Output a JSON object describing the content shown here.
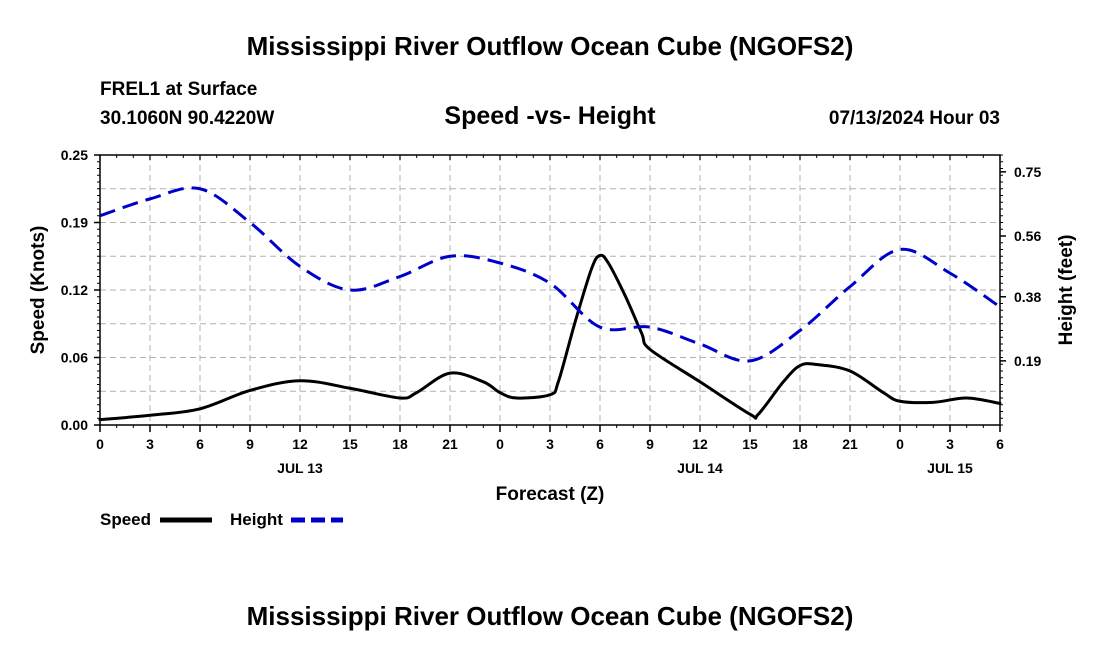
{
  "header": {
    "title": "Mississippi River Outflow Ocean Cube (NGOFS2)",
    "station": "FREL1 at Surface",
    "location": "30.1060N  90.4220W",
    "subtitle": "Speed -vs- Height",
    "datetime": "07/13/2024 Hour 03"
  },
  "footer": {
    "title": "Mississippi River Outflow Ocean Cube (NGOFS2)"
  },
  "colors": {
    "speed": "#000000",
    "height": "#0000cc",
    "grid": "#b0b0b0"
  },
  "chart_data": {
    "type": "line",
    "title": "Speed -vs- Height",
    "xlabel": "Forecast (Z)",
    "ylabel": "Speed (Knots)",
    "y2label": "Height (feet)",
    "xlim": [
      0,
      54
    ],
    "ylim": [
      0,
      0.25
    ],
    "y2lim": [
      0.0,
      0.8
    ],
    "x_ticks": [
      {
        "x": 0,
        "label": "0"
      },
      {
        "x": 3,
        "label": "3"
      },
      {
        "x": 6,
        "label": "6"
      },
      {
        "x": 9,
        "label": "9"
      },
      {
        "x": 12,
        "label": "12"
      },
      {
        "x": 15,
        "label": "15"
      },
      {
        "x": 18,
        "label": "18"
      },
      {
        "x": 21,
        "label": "21"
      },
      {
        "x": 24,
        "label": "0"
      },
      {
        "x": 27,
        "label": "3"
      },
      {
        "x": 30,
        "label": "6"
      },
      {
        "x": 33,
        "label": "9"
      },
      {
        "x": 36,
        "label": "12"
      },
      {
        "x": 39,
        "label": "15"
      },
      {
        "x": 42,
        "label": "18"
      },
      {
        "x": 45,
        "label": "21"
      },
      {
        "x": 48,
        "label": "0"
      },
      {
        "x": 51,
        "label": "3"
      },
      {
        "x": 54,
        "label": "6"
      }
    ],
    "date_labels": [
      {
        "x": 12,
        "label": "JUL 13"
      },
      {
        "x": 36,
        "label": "JUL 14"
      },
      {
        "x": 51,
        "label": "JUL 15"
      }
    ],
    "y_ticks": [
      {
        "value": 0.0,
        "label": "0.00"
      },
      {
        "value": 0.0625,
        "label": "0.06"
      },
      {
        "value": 0.125,
        "label": "0.12"
      },
      {
        "value": 0.1875,
        "label": "0.19"
      },
      {
        "value": 0.25,
        "label": "0.25"
      }
    ],
    "y2_ticks": [
      {
        "value": 0.19,
        "label": "0.19"
      },
      {
        "value": 0.38,
        "label": "0.38"
      },
      {
        "value": 0.56,
        "label": "0.56"
      },
      {
        "value": 0.75,
        "label": "0.75"
      }
    ],
    "series": [
      {
        "name": "Speed",
        "axis": "left",
        "style": "solid",
        "x": [
          0,
          3,
          6,
          9,
          12,
          15,
          18,
          19,
          21,
          23,
          24,
          25,
          27,
          27.5,
          28.5,
          29.5,
          30,
          30.5,
          31.5,
          32.5,
          33,
          36,
          39,
          39.5,
          41,
          42,
          43,
          45,
          47,
          48,
          50,
          52,
          54
        ],
        "values": [
          0.005,
          0.009,
          0.015,
          0.032,
          0.041,
          0.034,
          0.025,
          0.03,
          0.048,
          0.04,
          0.03,
          0.025,
          0.028,
          0.04,
          0.095,
          0.145,
          0.157,
          0.15,
          0.12,
          0.085,
          0.07,
          0.04,
          0.01,
          0.01,
          0.04,
          0.055,
          0.056,
          0.05,
          0.03,
          0.022,
          0.021,
          0.025,
          0.02
        ]
      },
      {
        "name": "Height",
        "axis": "right",
        "style": "dashed",
        "x": [
          0,
          3,
          6,
          9,
          12,
          15,
          18,
          21,
          24,
          27,
          30,
          33,
          36,
          39,
          42,
          45,
          48,
          51,
          54
        ],
        "values": [
          0.62,
          0.67,
          0.7,
          0.6,
          0.47,
          0.4,
          0.44,
          0.5,
          0.48,
          0.42,
          0.29,
          0.29,
          0.24,
          0.19,
          0.28,
          0.41,
          0.52,
          0.45,
          0.35
        ]
      }
    ],
    "legend": [
      {
        "label": "Speed",
        "style": "solid"
      },
      {
        "label": "Height",
        "style": "dashed"
      }
    ]
  }
}
